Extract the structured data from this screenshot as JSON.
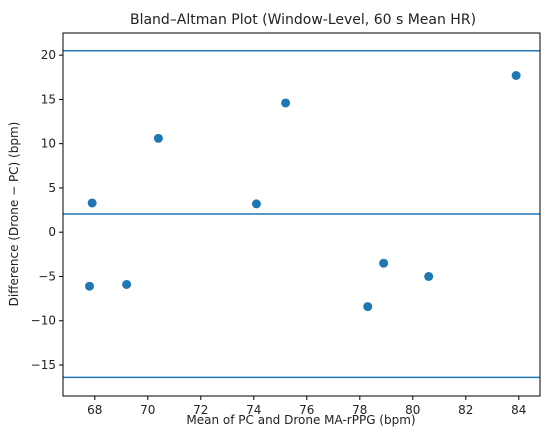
{
  "chart_data": {
    "type": "scatter",
    "title": "Bland–Altman Plot (Window-Level, 60 s Mean HR)",
    "xlabel": "Mean of PC and Drone MA-rPPG (bpm)",
    "ylabel": "Difference (Drone − PC) (bpm)",
    "xlim": [
      66.8,
      84.8
    ],
    "ylim": [
      -18.5,
      22.5
    ],
    "xticks": [
      68,
      70,
      72,
      74,
      76,
      78,
      80,
      82,
      84
    ],
    "yticks": [
      -15,
      -10,
      -5,
      0,
      5,
      10,
      15,
      20
    ],
    "grid": false,
    "points": {
      "x": [
        67.8,
        67.9,
        69.2,
        70.4,
        74.1,
        75.2,
        78.3,
        78.9,
        80.6,
        83.9
      ],
      "y": [
        -6.1,
        3.3,
        -5.9,
        10.6,
        3.2,
        14.6,
        -8.4,
        -3.5,
        -5.0,
        17.7
      ]
    },
    "reference_lines": [
      {
        "y": 20.5
      },
      {
        "y": 2.05
      },
      {
        "y": -16.4
      }
    ],
    "colors": {
      "points": "#1f77b4",
      "lines": "#1f77b4",
      "axes": "#000000"
    }
  }
}
